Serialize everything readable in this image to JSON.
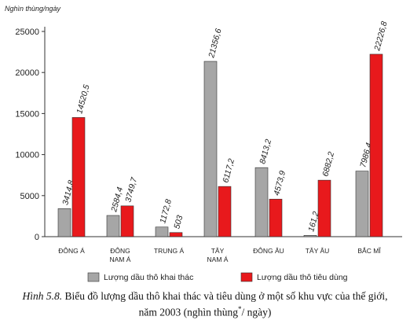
{
  "chart_data": {
    "type": "bar",
    "ylabel": "Nghìn thùng/ngày",
    "ylim": [
      0,
      25000
    ],
    "yticks": [
      0,
      5000,
      10000,
      15000,
      20000,
      25000
    ],
    "categories": [
      "ĐÔNG Á",
      "ĐÔNG NAM Á",
      "TRUNG Á",
      "TÂY NAM Á",
      "ĐÔNG ÂU",
      "TÂY ÂU",
      "BẮC MĨ"
    ],
    "series": [
      {
        "name": "Lượng dầu thô khai thác",
        "values": [
          3414.8,
          2584.4,
          1172.8,
          21356.6,
          8413.2,
          161.2,
          7986.4
        ],
        "labels": [
          "3414,8",
          "2584,4",
          "1172,8",
          "21356,6",
          "8413,2",
          "161,2",
          "7986,4"
        ],
        "color": "#a6a6a6"
      },
      {
        "name": "Lượng dầu thô tiêu dùng",
        "values": [
          14520.5,
          3749.7,
          503,
          6117.2,
          4573.9,
          6882.2,
          22226.8
        ],
        "labels": [
          "14520,5",
          "3749,7",
          "503",
          "6117,2",
          "4573,9",
          "6882,2",
          "22226,8"
        ],
        "color": "#e8191c"
      }
    ],
    "legend_position": "bottom"
  },
  "caption": {
    "lead": "Hình 5.8.",
    "text_line1": " Biểu đồ lượng dầu thô khai thác và tiêu dùng ở một số khu vực của thế giới,",
    "text_line2_pre": "năm 2003 (nghìn thùng",
    "text_line2_sup": "*",
    "text_line2_post": "/ ngày)"
  }
}
